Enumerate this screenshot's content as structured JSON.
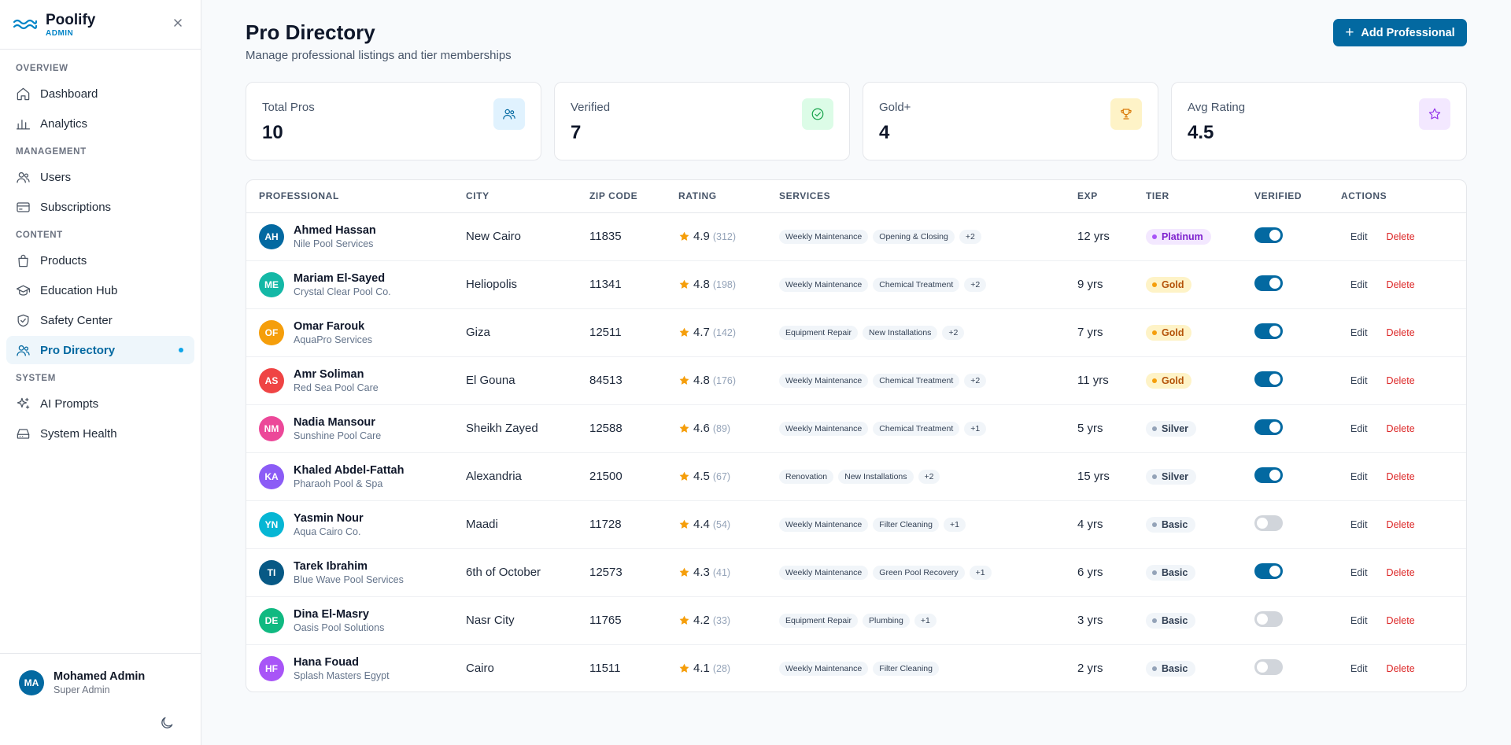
{
  "sidebar": {
    "brand": "Poolify",
    "brand_sub": "ADMIN",
    "sections": [
      {
        "label": "OVERVIEW",
        "items": [
          {
            "label": "Dashboard",
            "icon": "home-icon"
          },
          {
            "label": "Analytics",
            "icon": "bar-chart-icon"
          }
        ]
      },
      {
        "label": "MANAGEMENT",
        "items": [
          {
            "label": "Users",
            "icon": "users-icon"
          },
          {
            "label": "Subscriptions",
            "icon": "credit-card-icon"
          }
        ]
      },
      {
        "label": "CONTENT",
        "items": [
          {
            "label": "Products",
            "icon": "shopping-bag-icon"
          },
          {
            "label": "Education Hub",
            "icon": "graduation-cap-icon"
          },
          {
            "label": "Safety Center",
            "icon": "shield-check-icon"
          },
          {
            "label": "Pro Directory",
            "icon": "users-cog-icon",
            "active": true
          }
        ]
      },
      {
        "label": "SYSTEM",
        "items": [
          {
            "label": "AI Prompts",
            "icon": "sparkles-icon"
          },
          {
            "label": "System Health",
            "icon": "hard-drive-icon"
          }
        ]
      }
    ],
    "user": {
      "initials": "MA",
      "name": "Mohamed Admin",
      "role": "Super Admin"
    }
  },
  "header": {
    "title": "Pro Directory",
    "subtitle": "Manage professional listings and tier memberships",
    "add_label": "Add Professional"
  },
  "stats": [
    {
      "label": "Total Pros",
      "value": "10",
      "icon": "users-icon",
      "bg": "#e0f2fe",
      "fg": "#0369a1"
    },
    {
      "label": "Verified",
      "value": "7",
      "icon": "check-circle-icon",
      "bg": "#dcfce7",
      "fg": "#16a34a"
    },
    {
      "label": "Gold+",
      "value": "4",
      "icon": "trophy-icon",
      "bg": "#fef3c7",
      "fg": "#d97706"
    },
    {
      "label": "Avg Rating",
      "value": "4.5",
      "icon": "star-icon",
      "bg": "#f3e8ff",
      "fg": "#9333ea"
    }
  ],
  "table": {
    "columns": [
      "Professional",
      "City",
      "Zip Code",
      "Rating",
      "Services",
      "Exp",
      "Tier",
      "Verified",
      "Actions"
    ],
    "edit_label": "Edit",
    "delete_label": "Delete",
    "rows": [
      {
        "initials": "AH",
        "color": "#0369a1",
        "name": "Ahmed Hassan",
        "business": "Nile Pool Services",
        "city": "New Cairo",
        "zip": "11835",
        "rating": "4.9",
        "reviews": "(312)",
        "services": [
          "Weekly Maintenance",
          "Opening & Closing",
          "+2"
        ],
        "exp": "12 yrs",
        "tier": "Platinum",
        "verified": true
      },
      {
        "initials": "ME",
        "color": "#14b8a6",
        "name": "Mariam El-Sayed",
        "business": "Crystal Clear Pool Co.",
        "city": "Heliopolis",
        "zip": "11341",
        "rating": "4.8",
        "reviews": "(198)",
        "services": [
          "Weekly Maintenance",
          "Chemical Treatment",
          "+2"
        ],
        "exp": "9 yrs",
        "tier": "Gold",
        "verified": true
      },
      {
        "initials": "OF",
        "color": "#f59e0b",
        "name": "Omar Farouk",
        "business": "AquaPro Services",
        "city": "Giza",
        "zip": "12511",
        "rating": "4.7",
        "reviews": "(142)",
        "services": [
          "Equipment Repair",
          "New Installations",
          "+2"
        ],
        "exp": "7 yrs",
        "tier": "Gold",
        "verified": true
      },
      {
        "initials": "AS",
        "color": "#ef4444",
        "name": "Amr Soliman",
        "business": "Red Sea Pool Care",
        "city": "El Gouna",
        "zip": "84513",
        "rating": "4.8",
        "reviews": "(176)",
        "services": [
          "Weekly Maintenance",
          "Chemical Treatment",
          "+2"
        ],
        "exp": "11 yrs",
        "tier": "Gold",
        "verified": true
      },
      {
        "initials": "NM",
        "color": "#ec4899",
        "name": "Nadia Mansour",
        "business": "Sunshine Pool Care",
        "city": "Sheikh Zayed",
        "zip": "12588",
        "rating": "4.6",
        "reviews": "(89)",
        "services": [
          "Weekly Maintenance",
          "Chemical Treatment",
          "+1"
        ],
        "exp": "5 yrs",
        "tier": "Silver",
        "verified": true
      },
      {
        "initials": "KA",
        "color": "#8b5cf6",
        "name": "Khaled Abdel-Fattah",
        "business": "Pharaoh Pool & Spa",
        "city": "Alexandria",
        "zip": "21500",
        "rating": "4.5",
        "reviews": "(67)",
        "services": [
          "Renovation",
          "New Installations",
          "+2"
        ],
        "exp": "15 yrs",
        "tier": "Silver",
        "verified": true
      },
      {
        "initials": "YN",
        "color": "#06b6d4",
        "name": "Yasmin Nour",
        "business": "Aqua Cairo Co.",
        "city": "Maadi",
        "zip": "11728",
        "rating": "4.4",
        "reviews": "(54)",
        "services": [
          "Weekly Maintenance",
          "Filter Cleaning",
          "+1"
        ],
        "exp": "4 yrs",
        "tier": "Basic",
        "verified": false
      },
      {
        "initials": "TI",
        "color": "#075985",
        "name": "Tarek Ibrahim",
        "business": "Blue Wave Pool Services",
        "city": "6th of October",
        "zip": "12573",
        "rating": "4.3",
        "reviews": "(41)",
        "services": [
          "Weekly Maintenance",
          "Green Pool Recovery",
          "+1"
        ],
        "exp": "6 yrs",
        "tier": "Basic",
        "verified": true
      },
      {
        "initials": "DE",
        "color": "#10b981",
        "name": "Dina El-Masry",
        "business": "Oasis Pool Solutions",
        "city": "Nasr City",
        "zip": "11765",
        "rating": "4.2",
        "reviews": "(33)",
        "services": [
          "Equipment Repair",
          "Plumbing",
          "+1"
        ],
        "exp": "3 yrs",
        "tier": "Basic",
        "verified": false
      },
      {
        "initials": "HF",
        "color": "#a855f7",
        "name": "Hana Fouad",
        "business": "Splash Masters Egypt",
        "city": "Cairo",
        "zip": "11511",
        "rating": "4.1",
        "reviews": "(28)",
        "services": [
          "Weekly Maintenance",
          "Filter Cleaning"
        ],
        "exp": "2 yrs",
        "tier": "Basic",
        "verified": false
      }
    ]
  },
  "tier_styles": {
    "Platinum": {
      "bg": "#f3e8ff",
      "fg": "#7e22ce",
      "dot": "#a855f7"
    },
    "Gold": {
      "bg": "#fef3c7",
      "fg": "#b45309",
      "dot": "#f59e0b"
    },
    "Silver": {
      "bg": "#f1f5f9",
      "fg": "#334155",
      "dot": "#94a3b8"
    },
    "Basic": {
      "bg": "#f1f5f9",
      "fg": "#334155",
      "dot": "#94a3b8"
    }
  }
}
